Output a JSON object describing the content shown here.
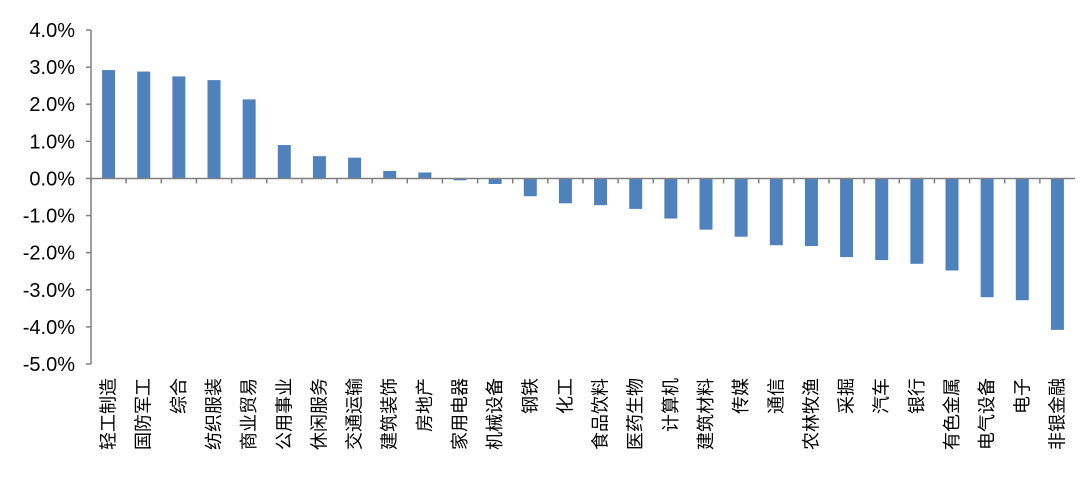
{
  "chart_data": {
    "type": "bar",
    "title": "",
    "xlabel": "",
    "ylabel": "",
    "ylim": [
      -5.0,
      4.0
    ],
    "y_tick_step": 1.0,
    "y_tick_labels": [
      "4.0%",
      "3.0%",
      "2.0%",
      "1.0%",
      "0.0%",
      "-1.0%",
      "-2.0%",
      "-3.0%",
      "-4.0%",
      "-5.0%"
    ],
    "bar_color": "#4f81bd",
    "grid": false,
    "legend": "none",
    "categories": [
      "轻工制造",
      "国防军工",
      "综合",
      "纺织服装",
      "商业贸易",
      "公用事业",
      "休闲服务",
      "交通运输",
      "建筑装饰",
      "房地产",
      "家用电器",
      "机械设备",
      "钢铁",
      "化工",
      "食品饮料",
      "医药生物",
      "计算机",
      "建筑材料",
      "传媒",
      "通信",
      "农林牧渔",
      "采掘",
      "汽车",
      "银行",
      "有色金属",
      "电气设备",
      "电子",
      "非银金融"
    ],
    "values": [
      2.92,
      2.88,
      2.75,
      2.65,
      2.13,
      0.9,
      0.6,
      0.56,
      0.2,
      0.16,
      -0.05,
      -0.15,
      -0.48,
      -0.67,
      -0.72,
      -0.82,
      -1.08,
      -1.38,
      -1.57,
      -1.8,
      -1.82,
      -2.12,
      -2.2,
      -2.3,
      -2.48,
      -3.2,
      -3.28,
      -4.08
    ]
  }
}
